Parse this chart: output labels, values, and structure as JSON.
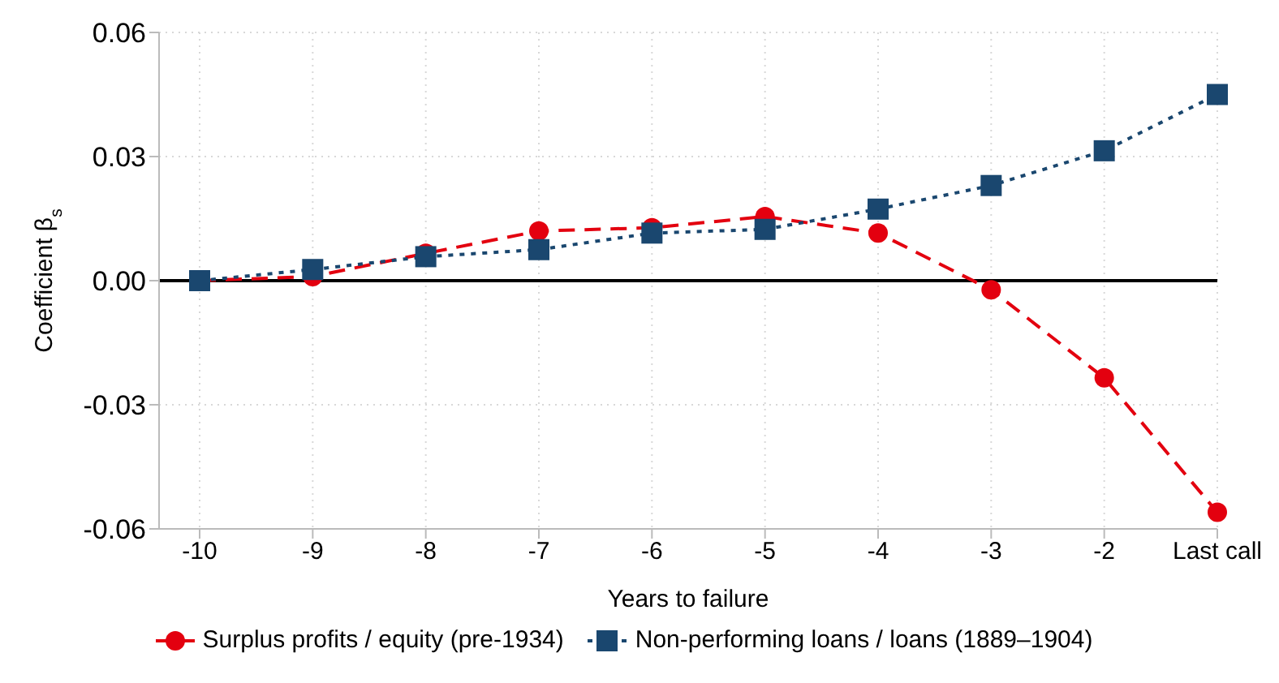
{
  "chart_data": {
    "type": "line",
    "xlabel": "Years to failure",
    "ylabel": "Coefficient β$_{s}$",
    "categories": [
      "-10",
      "-9",
      "-8",
      "-7",
      "-6",
      "-5",
      "-4",
      "-3",
      "-2",
      "Last call"
    ],
    "series": [
      {
        "name": "Surplus profits / equity (pre-1934)",
        "color": "#e3000f",
        "marker": "circle",
        "line_style": "dashed",
        "values": [
          0,
          0.001,
          0.0066,
          0.012,
          0.0128,
          0.0155,
          0.0115,
          -0.0022,
          -0.0235,
          -0.056
        ]
      },
      {
        "name": "Non-performing loans / loans (1889–1904)",
        "color": "#1a476f",
        "marker": "square",
        "line_style": "dotted",
        "values": [
          0,
          0.0027,
          0.0058,
          0.0075,
          0.0115,
          0.0124,
          0.0173,
          0.023,
          0.0314,
          0.045
        ]
      }
    ],
    "ylim": [
      -0.06,
      0.06
    ],
    "yticks": [
      {
        "value": -0.06,
        "label": "-0.06"
      },
      {
        "value": -0.03,
        "label": "-0.03"
      },
      {
        "value": 0,
        "label": "0.00"
      },
      {
        "value": 0.03,
        "label": "0.03"
      },
      {
        "value": 0.06,
        "label": "0.06"
      }
    ],
    "ref_lines": [
      {
        "axis": "y",
        "value": 0,
        "color": "#000000",
        "line_style": "solid"
      }
    ],
    "grid": true,
    "legend": "bottom"
  }
}
